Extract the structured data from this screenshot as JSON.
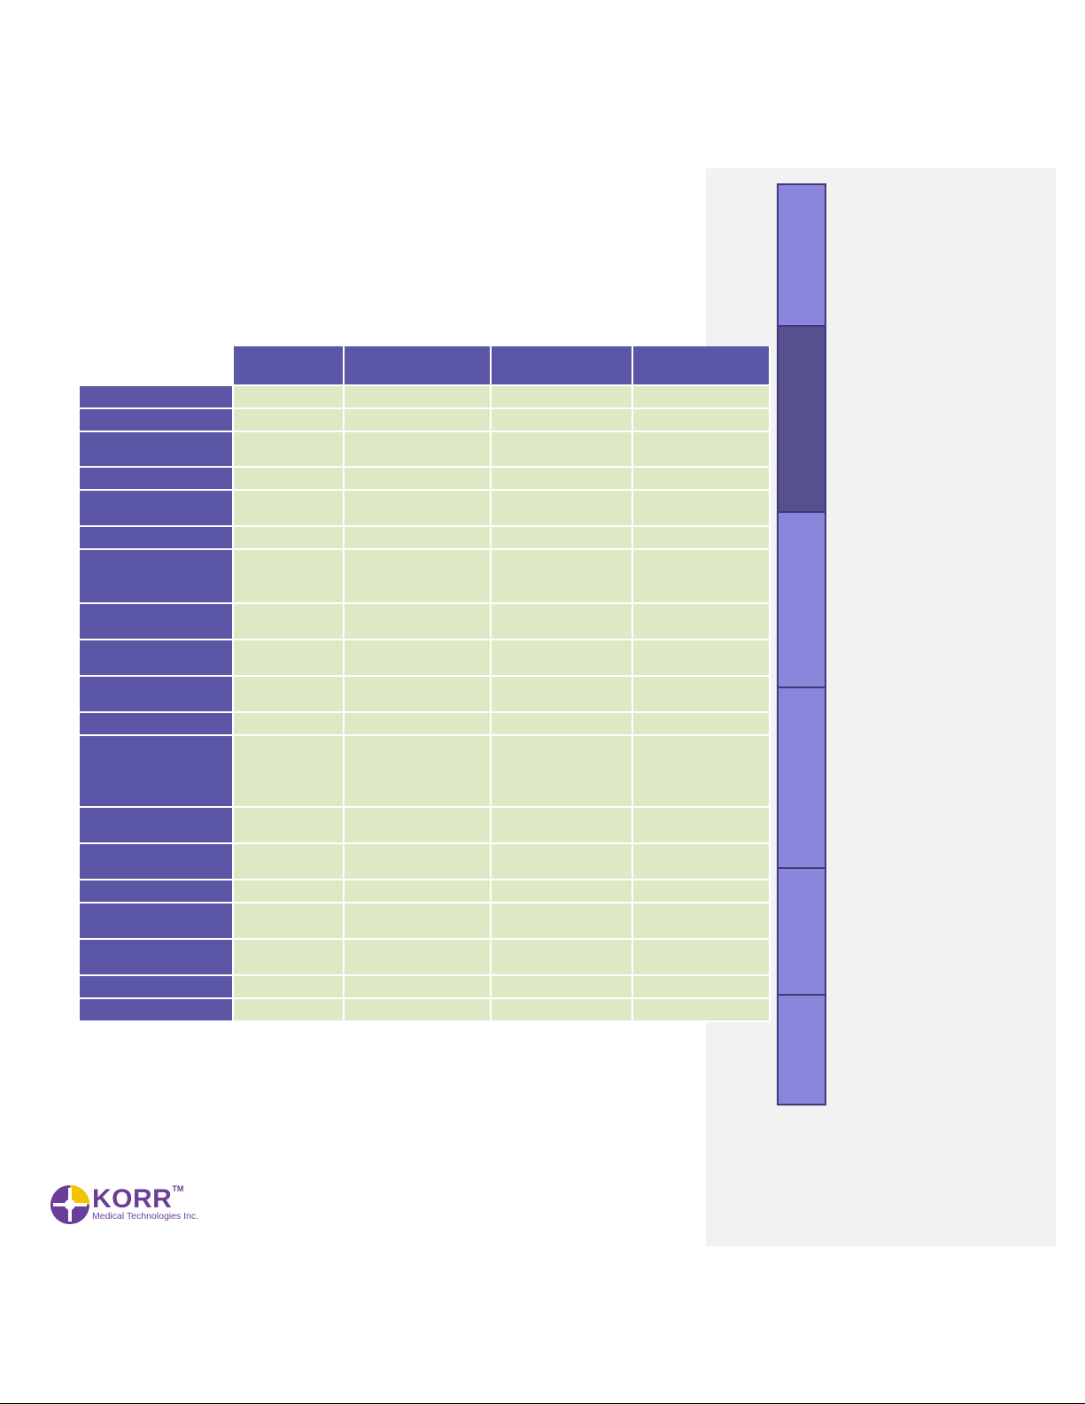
{
  "brand": {
    "name": "KORR",
    "trademark": "TM",
    "subtitle": "Medical Technologies Inc.",
    "colors": {
      "purple": "#6a3e98",
      "yellow": "#f5c400"
    }
  },
  "colors": {
    "header_purple": "#5b56a6",
    "cell_green": "#dce9c4",
    "tab_light": "#8b85db",
    "tab_dark": "#57508f",
    "panel_gray": "#f2f2f2"
  }
}
